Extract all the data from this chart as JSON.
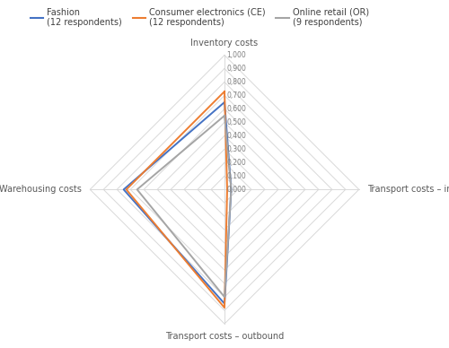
{
  "categories": [
    "Inventory costs",
    "Transport costs – inbound",
    "Transport costs – outbound",
    "Warehousing costs"
  ],
  "series": [
    {
      "label": "Fashion\n(12 respondents)",
      "color": "#4472C4",
      "values": [
        0.65,
        0.05,
        0.85,
        0.75
      ]
    },
    {
      "label": "Consumer electronics (CE)\n(12 respondents)",
      "color": "#ED7D31",
      "values": [
        0.73,
        0.02,
        0.88,
        0.73
      ]
    },
    {
      "label": "Online retail (OR)\n(9 respondents)",
      "color": "#A5A5A5",
      "values": [
        0.55,
        0.05,
        0.8,
        0.65
      ]
    }
  ],
  "grid_levels": [
    0.1,
    0.2,
    0.3,
    0.4,
    0.5,
    0.6,
    0.7,
    0.8,
    0.9,
    1.0
  ],
  "grid_tick_labels": [
    "0,100",
    "0,200",
    "0,300",
    "0,400",
    "0,500",
    "0,600",
    "0,700",
    "0,800",
    "0,900",
    "1,000"
  ],
  "background_color": "#FFFFFF",
  "grid_color": "#D9D9D9",
  "tick_label_color": "#7F7F7F",
  "axis_label_color": "#595959",
  "legend_label_color": "#404040",
  "figsize": [
    5.0,
    3.88
  ],
  "dpi": 100
}
